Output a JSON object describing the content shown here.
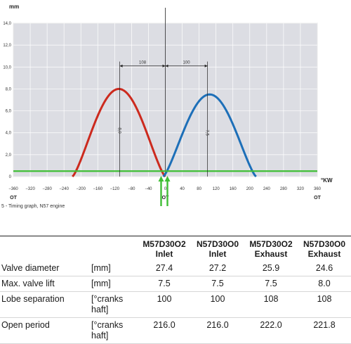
{
  "chart_data": {
    "type": "line",
    "ylabel": "mm",
    "xlabel": "°KW",
    "xlim": [
      -360,
      360
    ],
    "ylim": [
      0,
      14
    ],
    "x_ticks": [
      -360,
      -320,
      -280,
      -240,
      -200,
      -160,
      -120,
      -80,
      -40,
      0,
      40,
      80,
      120,
      160,
      200,
      240,
      280,
      320,
      360
    ],
    "y_ticks": [
      "0",
      "2,0",
      "4,0",
      "6,0",
      "8,0",
      "10,0",
      "12,0",
      "14,0"
    ],
    "ot_labels": [
      {
        "x": -360,
        "text": "OT"
      },
      {
        "x": 0,
        "text": "OT"
      },
      {
        "x": 360,
        "text": "OT"
      }
    ],
    "series": [
      {
        "color": "#cc2a1e",
        "start": -220,
        "end": 0,
        "peak_x": -108,
        "peak_y": 8.0
      },
      {
        "color": "#1d6fb8",
        "start": -5,
        "end": 215,
        "peak_x": 100,
        "peak_y": 7.5
      }
    ],
    "threshold": {
      "y": 0.5,
      "color": "#3fbe35"
    },
    "annotations": {
      "separation_left": "108",
      "separation_right": "100",
      "lift_left": "8,0",
      "lift_right": "7,5"
    },
    "arrows": {
      "color": "#3fbe35",
      "x": [
        -10,
        5
      ]
    },
    "caption": "5 - Timing graph, N57 engine"
  },
  "table": {
    "columns": [
      {
        "line1": "M57D30O2",
        "line2": "Inlet"
      },
      {
        "line1": "N57D30O0",
        "line2": "Inlet"
      },
      {
        "line1": "M57D30O2",
        "line2": "Exhaust"
      },
      {
        "line1": "N57D30O0",
        "line2": "Exhaust"
      }
    ],
    "rows": [
      {
        "label": "Valve diameter",
        "unit": "[mm]",
        "values": [
          "27.4",
          "27.2",
          "25.9",
          "24.6"
        ]
      },
      {
        "label": "Max. valve lift",
        "unit": "[mm]",
        "values": [
          "7.5",
          "7.5",
          "7.5",
          "8.0"
        ]
      },
      {
        "label": "Lobe separation",
        "unit": "[°cranks haft]",
        "values": [
          "100",
          "100",
          "108",
          "108"
        ]
      },
      {
        "label": "Open period",
        "unit": "[°cranks haft]",
        "values": [
          "216.0",
          "216.0",
          "222.0",
          "221.8"
        ]
      }
    ]
  }
}
